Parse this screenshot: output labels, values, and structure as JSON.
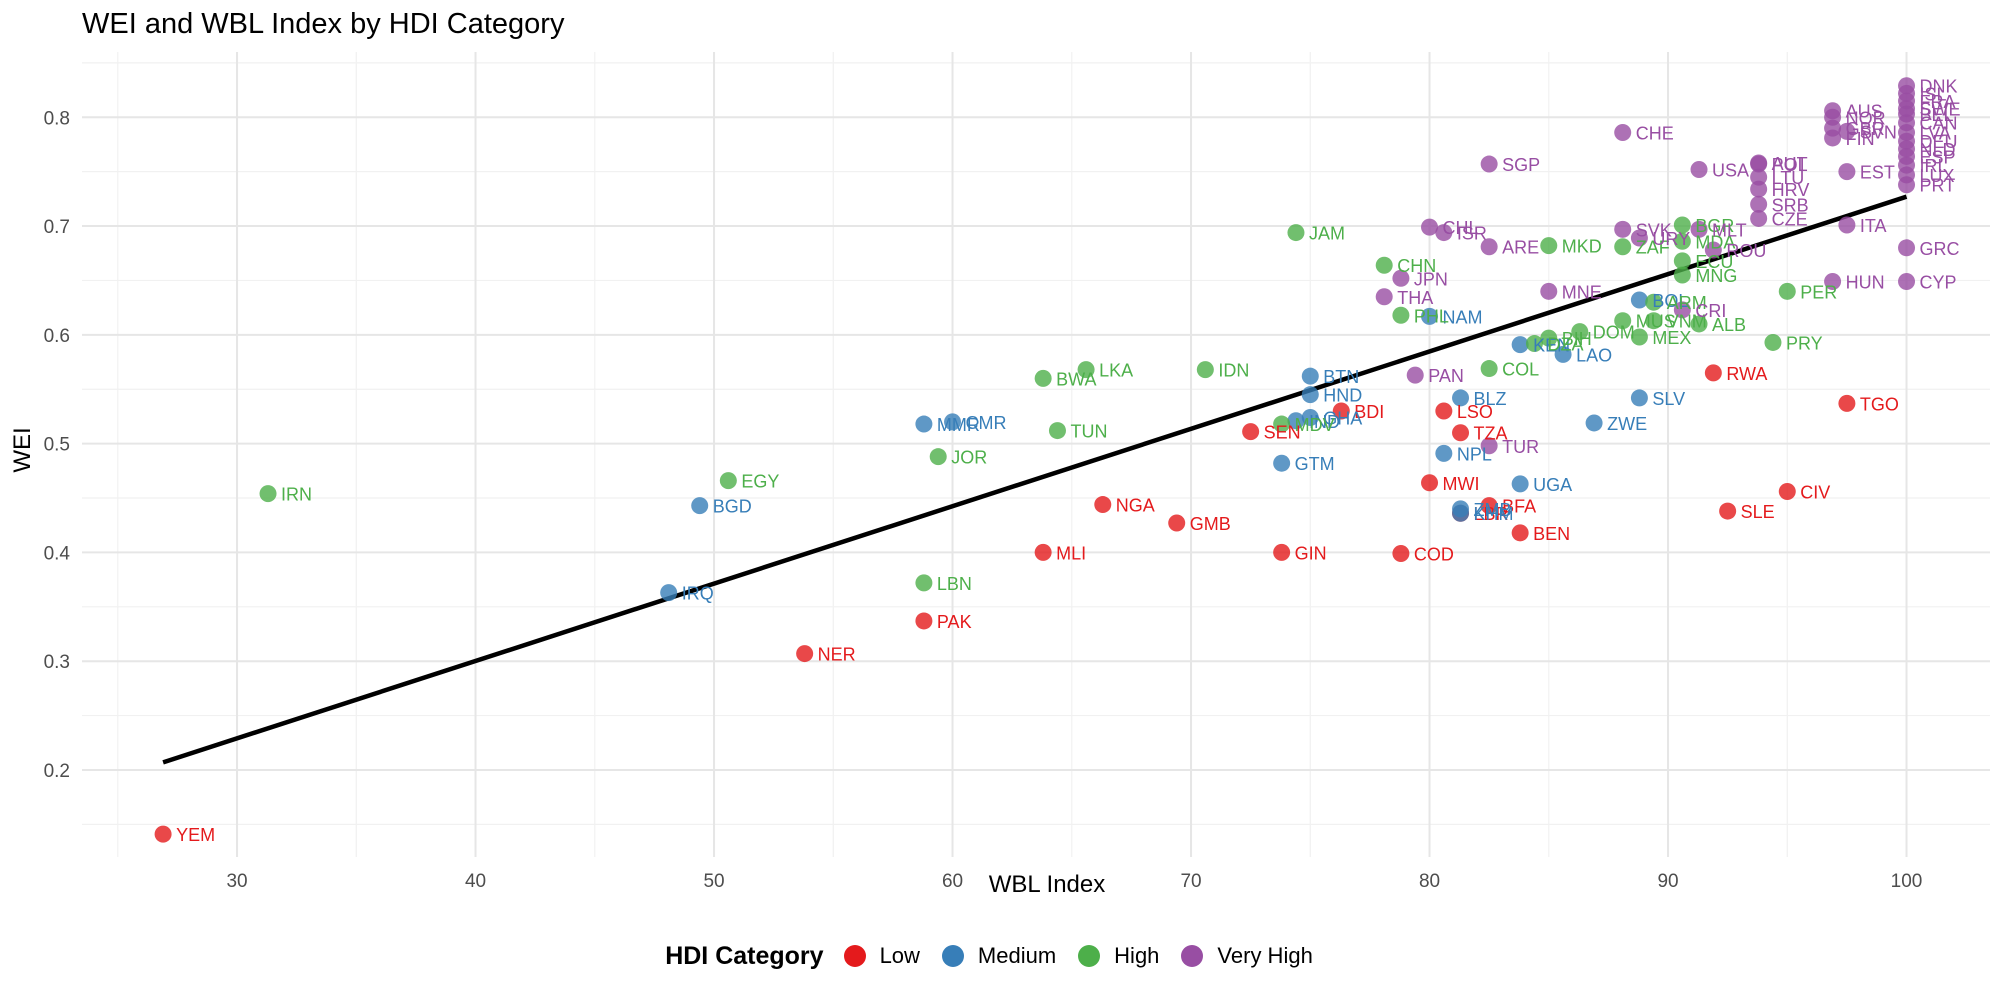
{
  "chart_data": {
    "type": "scatter",
    "title": "WEI and WBL Index by HDI Category",
    "xlabel": "WBL Index",
    "ylabel": "WEI",
    "xlim": [
      23.5,
      103.5
    ],
    "ylim": [
      0.12,
      0.86
    ],
    "x_ticks": [
      30,
      40,
      50,
      60,
      70,
      80,
      90,
      100
    ],
    "y_ticks": [
      0.2,
      0.3,
      0.4,
      0.5,
      0.6,
      0.7,
      0.8
    ],
    "grid": true,
    "legend_position": "bottom",
    "legend_title": "HDI Category",
    "categories": [
      {
        "name": "Low",
        "color": "#E41A1C"
      },
      {
        "name": "Medium",
        "color": "#377EB8"
      },
      {
        "name": "High",
        "color": "#4DAF4A"
      },
      {
        "name": "Very High",
        "color": "#984EA3"
      }
    ],
    "trend_line": {
      "x": [
        26.9,
        100
      ],
      "y": [
        0.207,
        0.727
      ],
      "color": "#000000"
    },
    "points": [
      {
        "label": "YEM",
        "x": 26.9,
        "y": 0.141,
        "cat": 0
      },
      {
        "label": "NER",
        "x": 53.8,
        "y": 0.307,
        "cat": 0
      },
      {
        "label": "PAK",
        "x": 58.8,
        "y": 0.337,
        "cat": 0
      },
      {
        "label": "MLI",
        "x": 63.8,
        "y": 0.4,
        "cat": 0
      },
      {
        "label": "NGA",
        "x": 66.3,
        "y": 0.444,
        "cat": 0
      },
      {
        "label": "GMB",
        "x": 69.4,
        "y": 0.427,
        "cat": 0
      },
      {
        "label": "SEN",
        "x": 72.5,
        "y": 0.511,
        "cat": 0
      },
      {
        "label": "GIN",
        "x": 73.8,
        "y": 0.4,
        "cat": 0
      },
      {
        "label": "BDI",
        "x": 76.3,
        "y": 0.53,
        "cat": 0
      },
      {
        "label": "COD",
        "x": 78.8,
        "y": 0.399,
        "cat": 0
      },
      {
        "label": "MWI",
        "x": 80.0,
        "y": 0.464,
        "cat": 0
      },
      {
        "label": "LSO",
        "x": 80.6,
        "y": 0.53,
        "cat": 0
      },
      {
        "label": "TZA",
        "x": 81.3,
        "y": 0.51,
        "cat": 0
      },
      {
        "label": "LBR",
        "x": 81.3,
        "y": 0.436,
        "cat": 0
      },
      {
        "label": "BFA",
        "x": 82.5,
        "y": 0.443,
        "cat": 0
      },
      {
        "label": "BEN",
        "x": 83.8,
        "y": 0.418,
        "cat": 0
      },
      {
        "label": "RWA",
        "x": 91.9,
        "y": 0.565,
        "cat": 0
      },
      {
        "label": "SLE",
        "x": 92.5,
        "y": 0.438,
        "cat": 0
      },
      {
        "label": "CIV",
        "x": 95.0,
        "y": 0.456,
        "cat": 0
      },
      {
        "label": "TGO",
        "x": 97.5,
        "y": 0.537,
        "cat": 0
      },
      {
        "label": "IRQ",
        "x": 48.1,
        "y": 0.363,
        "cat": 1
      },
      {
        "label": "BGD",
        "x": 49.4,
        "y": 0.443,
        "cat": 1
      },
      {
        "label": "MMR",
        "x": 58.8,
        "y": 0.518,
        "cat": 1
      },
      {
        "label": "CMR",
        "x": 60.0,
        "y": 0.52,
        "cat": 1
      },
      {
        "label": "GTM",
        "x": 73.8,
        "y": 0.482,
        "cat": 1
      },
      {
        "label": "IND",
        "x": 74.4,
        "y": 0.521,
        "cat": 1
      },
      {
        "label": "GHA",
        "x": 75.0,
        "y": 0.524,
        "cat": 1
      },
      {
        "label": "HND",
        "x": 75.0,
        "y": 0.545,
        "cat": 1
      },
      {
        "label": "BTN",
        "x": 75.0,
        "y": 0.562,
        "cat": 1
      },
      {
        "label": "NAM",
        "x": 80.0,
        "y": 0.617,
        "cat": 1
      },
      {
        "label": "NPL",
        "x": 80.6,
        "y": 0.491,
        "cat": 1
      },
      {
        "label": "ZMB",
        "x": 81.3,
        "y": 0.44,
        "cat": 1
      },
      {
        "label": "BLZ",
        "x": 81.3,
        "y": 0.542,
        "cat": 1
      },
      {
        "label": "UGA",
        "x": 83.8,
        "y": 0.463,
        "cat": 1
      },
      {
        "label": "KEN",
        "x": 83.8,
        "y": 0.591,
        "cat": 1
      },
      {
        "label": "LAO",
        "x": 85.6,
        "y": 0.582,
        "cat": 1
      },
      {
        "label": "ZWE",
        "x": 86.9,
        "y": 0.519,
        "cat": 1
      },
      {
        "label": "SLV",
        "x": 88.8,
        "y": 0.542,
        "cat": 1
      },
      {
        "label": "BOL",
        "x": 88.8,
        "y": 0.632,
        "cat": 1
      },
      {
        "label": "KHM",
        "x": 81.3,
        "y": 0.436,
        "cat": 1
      },
      {
        "label": "IRN",
        "x": 31.3,
        "y": 0.454,
        "cat": 2
      },
      {
        "label": "EGY",
        "x": 50.6,
        "y": 0.466,
        "cat": 2
      },
      {
        "label": "LBN",
        "x": 58.8,
        "y": 0.372,
        "cat": 2
      },
      {
        "label": "JOR",
        "x": 59.4,
        "y": 0.488,
        "cat": 2
      },
      {
        "label": "BWA",
        "x": 63.8,
        "y": 0.56,
        "cat": 2
      },
      {
        "label": "TUN",
        "x": 64.4,
        "y": 0.512,
        "cat": 2
      },
      {
        "label": "LKA",
        "x": 65.6,
        "y": 0.568,
        "cat": 2
      },
      {
        "label": "IDN",
        "x": 70.6,
        "y": 0.568,
        "cat": 2
      },
      {
        "label": "MDV",
        "x": 73.8,
        "y": 0.518,
        "cat": 2
      },
      {
        "label": "JAM",
        "x": 74.4,
        "y": 0.694,
        "cat": 2
      },
      {
        "label": "CHN",
        "x": 78.1,
        "y": 0.664,
        "cat": 2
      },
      {
        "label": "PHL",
        "x": 78.8,
        "y": 0.618,
        "cat": 2
      },
      {
        "label": "COL",
        "x": 82.5,
        "y": 0.569,
        "cat": 2
      },
      {
        "label": "DZA",
        "x": 84.4,
        "y": 0.592,
        "cat": 2
      },
      {
        "label": "BIH",
        "x": 85.0,
        "y": 0.597,
        "cat": 2
      },
      {
        "label": "MKD",
        "x": 85.0,
        "y": 0.682,
        "cat": 2
      },
      {
        "label": "DOM",
        "x": 86.3,
        "y": 0.603,
        "cat": 2
      },
      {
        "label": "ZAF",
        "x": 88.1,
        "y": 0.681,
        "cat": 2
      },
      {
        "label": "MUS",
        "x": 88.1,
        "y": 0.613,
        "cat": 2
      },
      {
        "label": "MEX",
        "x": 88.8,
        "y": 0.598,
        "cat": 2
      },
      {
        "label": "VNM",
        "x": 89.4,
        "y": 0.613,
        "cat": 2
      },
      {
        "label": "ARM",
        "x": 89.4,
        "y": 0.63,
        "cat": 2
      },
      {
        "label": "MDA",
        "x": 90.6,
        "y": 0.686,
        "cat": 2
      },
      {
        "label": "BGR",
        "x": 90.6,
        "y": 0.701,
        "cat": 2
      },
      {
        "label": "ALB",
        "x": 91.3,
        "y": 0.61,
        "cat": 2
      },
      {
        "label": "ECU",
        "x": 90.6,
        "y": 0.668,
        "cat": 2
      },
      {
        "label": "MNG",
        "x": 90.6,
        "y": 0.655,
        "cat": 2
      },
      {
        "label": "PRY",
        "x": 94.4,
        "y": 0.593,
        "cat": 2
      },
      {
        "label": "PER",
        "x": 95.0,
        "y": 0.64,
        "cat": 2
      },
      {
        "label": "PAN",
        "x": 79.4,
        "y": 0.563,
        "cat": 3
      },
      {
        "label": "THA",
        "x": 78.1,
        "y": 0.635,
        "cat": 3
      },
      {
        "label": "JPN",
        "x": 78.8,
        "y": 0.652,
        "cat": 3
      },
      {
        "label": "CHL",
        "x": 80.0,
        "y": 0.699,
        "cat": 3
      },
      {
        "label": "ISR",
        "x": 80.6,
        "y": 0.694,
        "cat": 3
      },
      {
        "label": "ARE",
        "x": 82.5,
        "y": 0.681,
        "cat": 3
      },
      {
        "label": "SGP",
        "x": 82.5,
        "y": 0.757,
        "cat": 3
      },
      {
        "label": "TUR",
        "x": 82.5,
        "y": 0.498,
        "cat": 3
      },
      {
        "label": "MNE",
        "x": 85.0,
        "y": 0.64,
        "cat": 3
      },
      {
        "label": "SVK",
        "x": 88.1,
        "y": 0.697,
        "cat": 3
      },
      {
        "label": "URY",
        "x": 88.8,
        "y": 0.689,
        "cat": 3
      },
      {
        "label": "CHE",
        "x": 88.1,
        "y": 0.786,
        "cat": 3
      },
      {
        "label": "CRI",
        "x": 90.6,
        "y": 0.623,
        "cat": 3
      },
      {
        "label": "ROU",
        "x": 91.9,
        "y": 0.678,
        "cat": 3
      },
      {
        "label": "MLT",
        "x": 91.3,
        "y": 0.697,
        "cat": 3
      },
      {
        "label": "USA",
        "x": 91.3,
        "y": 0.752,
        "cat": 3
      },
      {
        "label": "HRV",
        "x": 93.8,
        "y": 0.734,
        "cat": 3
      },
      {
        "label": "SRB",
        "x": 93.8,
        "y": 0.72,
        "cat": 3
      },
      {
        "label": "CZE",
        "x": 93.8,
        "y": 0.707,
        "cat": 3
      },
      {
        "label": "LTU",
        "x": 93.8,
        "y": 0.745,
        "cat": 3
      },
      {
        "label": "POL",
        "x": 93.8,
        "y": 0.757,
        "cat": 3
      },
      {
        "label": "AUT",
        "x": 93.8,
        "y": 0.758,
        "cat": 3
      },
      {
        "label": "HUN",
        "x": 96.9,
        "y": 0.649,
        "cat": 3
      },
      {
        "label": "ITA",
        "x": 97.5,
        "y": 0.701,
        "cat": 3
      },
      {
        "label": "EST",
        "x": 97.5,
        "y": 0.75,
        "cat": 3
      },
      {
        "label": "FIN",
        "x": 96.9,
        "y": 0.781,
        "cat": 3
      },
      {
        "label": "SVN",
        "x": 97.5,
        "y": 0.787,
        "cat": 3
      },
      {
        "label": "NOR",
        "x": 96.9,
        "y": 0.8,
        "cat": 3
      },
      {
        "label": "AUS",
        "x": 96.9,
        "y": 0.806,
        "cat": 3
      },
      {
        "label": "GBR",
        "x": 96.9,
        "y": 0.79,
        "cat": 3
      },
      {
        "label": "CYP",
        "x": 100.0,
        "y": 0.649,
        "cat": 3
      },
      {
        "label": "GRC",
        "x": 100.0,
        "y": 0.68,
        "cat": 3
      },
      {
        "label": "PRT",
        "x": 100.0,
        "y": 0.738,
        "cat": 3
      },
      {
        "label": "LUX",
        "x": 100.0,
        "y": 0.747,
        "cat": 3
      },
      {
        "label": "IRL",
        "x": 100.0,
        "y": 0.756,
        "cat": 3
      },
      {
        "label": "ESP",
        "x": 100.0,
        "y": 0.764,
        "cat": 3
      },
      {
        "label": "NLD",
        "x": 100.0,
        "y": 0.771,
        "cat": 3
      },
      {
        "label": "DEU",
        "x": 100.0,
        "y": 0.778,
        "cat": 3
      },
      {
        "label": "LVA",
        "x": 100.0,
        "y": 0.786,
        "cat": 3
      },
      {
        "label": "CAN",
        "x": 100.0,
        "y": 0.795,
        "cat": 3
      },
      {
        "label": "BEL",
        "x": 100.0,
        "y": 0.803,
        "cat": 3
      },
      {
        "label": "FRA",
        "x": 100.0,
        "y": 0.815,
        "cat": 3
      },
      {
        "label": "SWE",
        "x": 100.0,
        "y": 0.808,
        "cat": 3
      },
      {
        "label": "ISL",
        "x": 100.0,
        "y": 0.822,
        "cat": 3
      },
      {
        "label": "DNK",
        "x": 100.0,
        "y": 0.829,
        "cat": 3
      }
    ]
  }
}
